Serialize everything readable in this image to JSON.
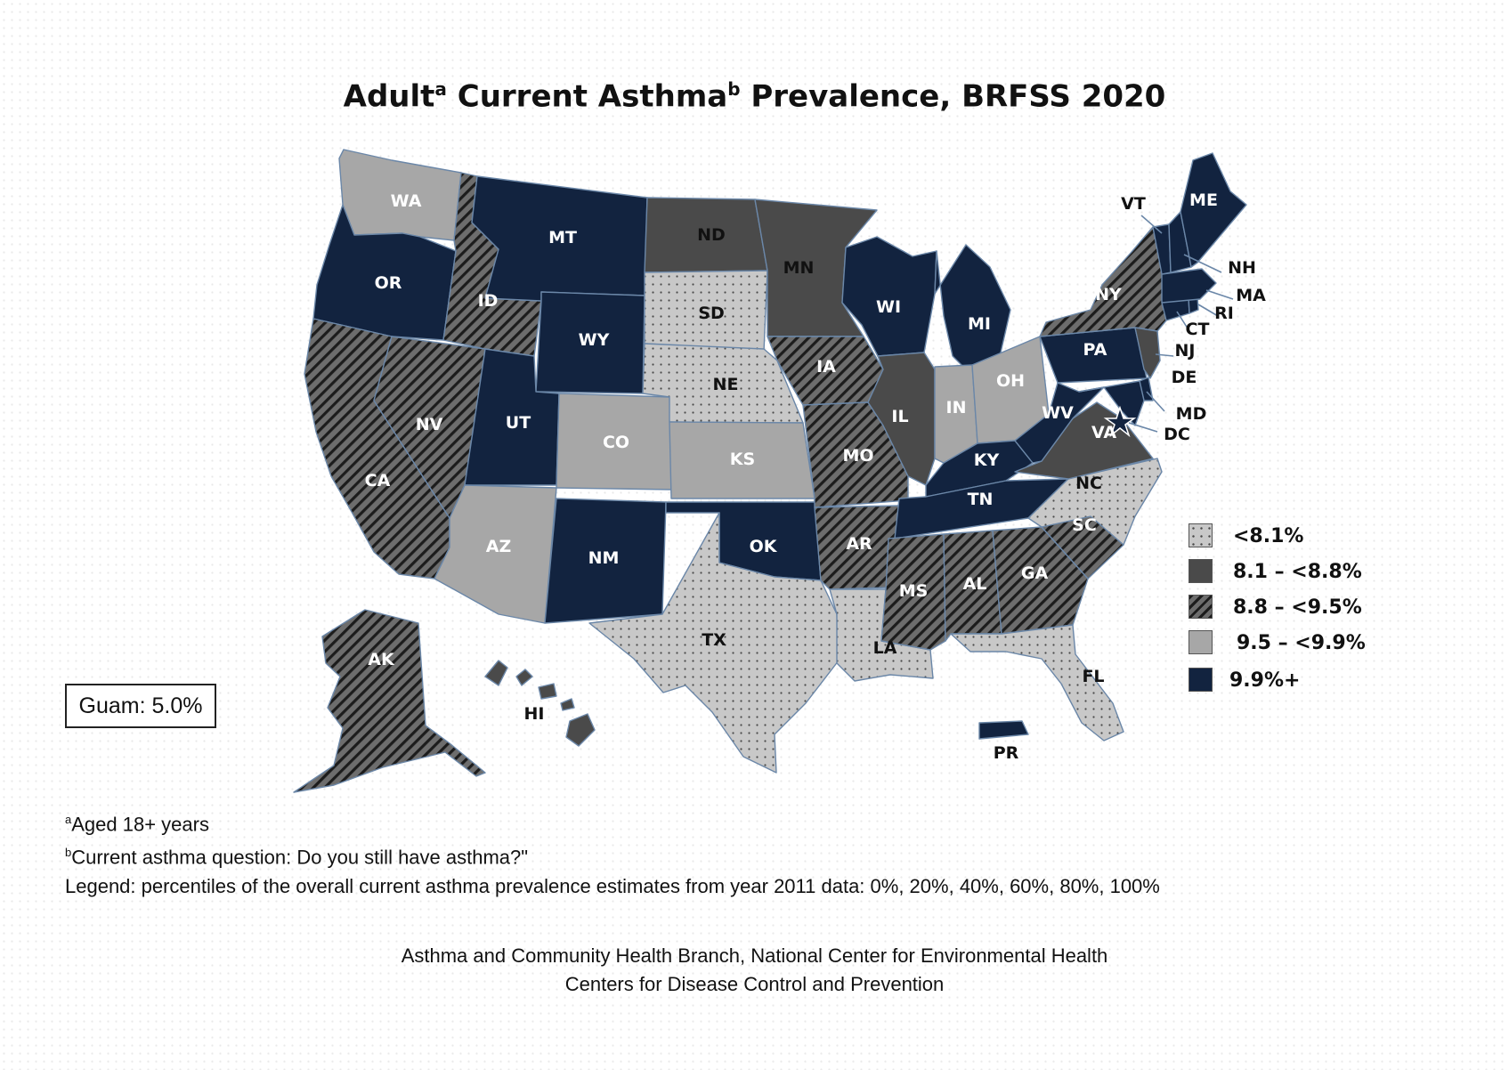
{
  "title": {
    "adult": "Adult",
    "a": "a",
    "mid": " Current Asthma",
    "b": "b",
    "rest": " Prevalence, BRFSS 2020"
  },
  "legend": [
    {
      "label": "<8.1%",
      "class": "dotted"
    },
    {
      "label": "8.1 – <8.8%",
      "class": "dark-gray"
    },
    {
      "label": "8.8 – <9.5%",
      "class": "hatched"
    },
    {
      "label": "9.5 – <9.9%",
      "class": "light-gray"
    },
    {
      "label": "9.9%+",
      "class": "navy"
    }
  ],
  "colors": {
    "navy": "#12233f",
    "dark_gray": "#4a4a4a",
    "light_gray": "#a7a7a7",
    "dotted_fill": "#c8c8c8",
    "hatched_fill": "#6d6d6d",
    "border": "#6b87a8"
  },
  "guam": "Guam: 5.0%",
  "states": {
    "WA": "light-gray",
    "OR": "navy",
    "CA": "hatched",
    "NV": "hatched",
    "ID": "hatched",
    "MT": "navy",
    "WY": "navy",
    "UT": "navy",
    "AZ": "light-gray",
    "CO": "light-gray",
    "NM": "navy",
    "ND": "dark-gray",
    "SD": "dotted",
    "NE": "dotted",
    "KS": "light-gray",
    "OK": "navy",
    "TX": "dotted",
    "MN": "dark-gray",
    "IA": "hatched",
    "MO": "hatched",
    "AR": "hatched",
    "LA": "dotted",
    "WI": "navy",
    "IL": "dark-gray",
    "MI": "navy",
    "IN": "light-gray",
    "OH": "light-gray",
    "KY": "navy",
    "TN": "navy",
    "MS": "hatched",
    "AL": "hatched",
    "GA": "hatched",
    "FL": "dotted",
    "SC": "hatched",
    "NC": "dotted",
    "VA": "dark-gray",
    "WV": "navy",
    "PA": "navy",
    "NY": "hatched",
    "NJ": "dark-gray",
    "DE": "navy",
    "MD": "navy",
    "DC": "navy",
    "CT": "navy",
    "RI": "navy",
    "MA": "navy",
    "VT": "navy",
    "NH": "navy",
    "ME": "navy",
    "AK": "hatched",
    "HI": "dark-gray",
    "PR": "navy"
  },
  "notes": {
    "line1_sup": "a",
    "line1": "Aged 18+ years",
    "line2_sup": "b",
    "line2": "Current asthma question: Do you still have asthma?\"",
    "line3": "Legend:  percentiles of the overall current asthma prevalence estimates from year 2011  data: 0%, 20%, 40%, 60%, 80%, 100%"
  },
  "source": {
    "line1": "Asthma and Community Health Branch, National Center for Environmental Health",
    "line2": "Centers for Disease Control and Prevention"
  }
}
